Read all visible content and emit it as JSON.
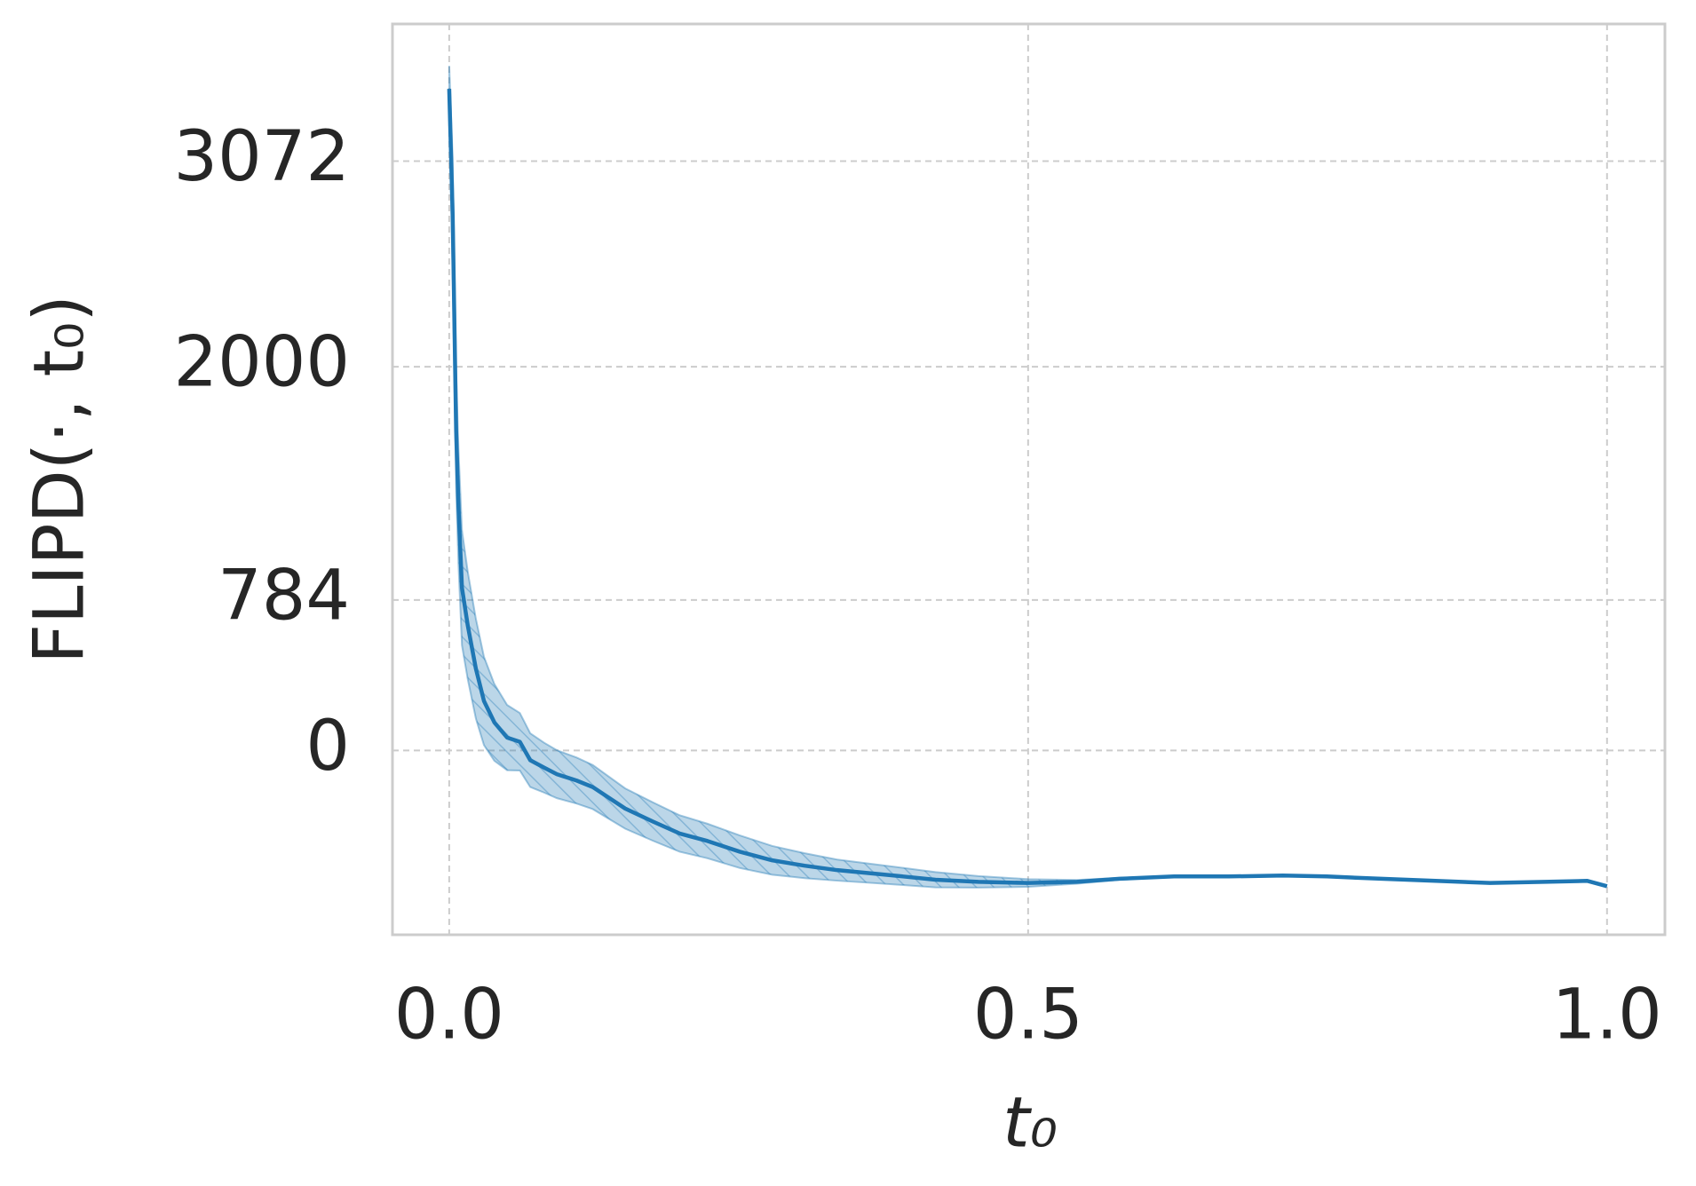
{
  "chart_data": {
    "type": "line",
    "xlabel": "t₀",
    "ylabel": "FLIPD(·, t₀)",
    "x": [
      0,
      0.003,
      0.006,
      0.008,
      0.011,
      0.016,
      0.023,
      0.03,
      0.039,
      0.05,
      0.061,
      0.07,
      0.082,
      0.093,
      0.11,
      0.124,
      0.138,
      0.152,
      0.176,
      0.199,
      0.223,
      0.251,
      0.279,
      0.307,
      0.335,
      0.363,
      0.392,
      0.42,
      0.457,
      0.5,
      0.542,
      0.579,
      0.626,
      0.673,
      0.72,
      0.758,
      0.805,
      0.852,
      0.899,
      0.946,
      0.983,
      1.0
    ],
    "series": [
      {
        "color": "#1f77b4",
        "values": [
          3449,
          2787,
          1663,
          1270,
          848,
          652,
          427,
          258,
          146,
          67,
          45,
          -51,
          -90,
          -124,
          -157,
          -191,
          -247,
          -303,
          -371,
          -433,
          -472,
          -528,
          -573,
          -601,
          -624,
          -640,
          -657,
          -674,
          -685,
          -691,
          -685,
          -669,
          -657,
          -657,
          -652,
          -657,
          -669,
          -680,
          -691,
          -685,
          -680,
          -708
        ]
      }
    ],
    "band": {
      "color": "#1f77b4",
      "upper": [
        3569,
        3087,
        1963,
        1570,
        1148,
        932,
        687,
        488,
        346,
        237,
        195,
        89,
        40,
        1,
        -37,
        -76,
        -137,
        -198,
        -271,
        -338,
        -382,
        -443,
        -498,
        -536,
        -569,
        -590,
        -612,
        -634,
        -655,
        -671,
        -675,
        -664,
        -657,
        -657,
        -652,
        -657,
        -669,
        -680,
        -691,
        -685,
        -680,
        -708
      ],
      "lower": [
        3329,
        2487,
        1363,
        970,
        548,
        372,
        167,
        28,
        -54,
        -103,
        -105,
        -191,
        -220,
        -249,
        -277,
        -306,
        -357,
        -408,
        -471,
        -528,
        -562,
        -613,
        -648,
        -666,
        -679,
        -690,
        -702,
        -714,
        -715,
        -711,
        -695,
        -674,
        -657,
        -657,
        -652,
        -657,
        -669,
        -680,
        -691,
        -685,
        -680,
        -708
      ]
    },
    "xlim": [
      -0.049,
      1.05
    ],
    "ylim": [
      -961,
      3787
    ],
    "xticks": [
      {
        "value": 0,
        "label": "0.0"
      },
      {
        "value": 0.5,
        "label": "0.5"
      },
      {
        "value": 1,
        "label": "1.0"
      }
    ],
    "yticks": [
      0,
      784,
      2000,
      3072
    ],
    "grid": true
  }
}
